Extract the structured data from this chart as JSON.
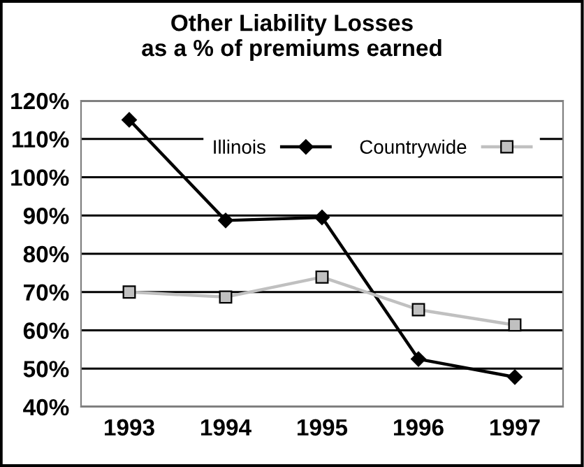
{
  "chart_data": {
    "type": "line",
    "title": "Other Liability Losses\nas a % of premiums earned",
    "categories": [
      "1993",
      "1994",
      "1995",
      "1996",
      "1997"
    ],
    "series": [
      {
        "name": "Illinois",
        "color": "#000000",
        "marker": "diamond",
        "values": [
          115.0,
          88.7,
          89.5,
          52.5,
          47.8
        ]
      },
      {
        "name": "Countrywide",
        "color": "#c0c0c0",
        "marker": "square",
        "values": [
          70.0,
          68.7,
          73.9,
          65.4,
          61.4
        ]
      }
    ],
    "ylim": [
      40,
      120
    ],
    "yticks": [
      {
        "value": 40,
        "label": "40%"
      },
      {
        "value": 50,
        "label": "50%"
      },
      {
        "value": 60,
        "label": "60%"
      },
      {
        "value": 70,
        "label": "70%"
      },
      {
        "value": 80,
        "label": "80%"
      },
      {
        "value": 90,
        "label": "90%"
      },
      {
        "value": 100,
        "label": "100%"
      },
      {
        "value": 110,
        "label": "110%"
      },
      {
        "value": 120,
        "label": "120%"
      }
    ],
    "grid": "y",
    "legend": "top right",
    "line_style": "solid"
  }
}
